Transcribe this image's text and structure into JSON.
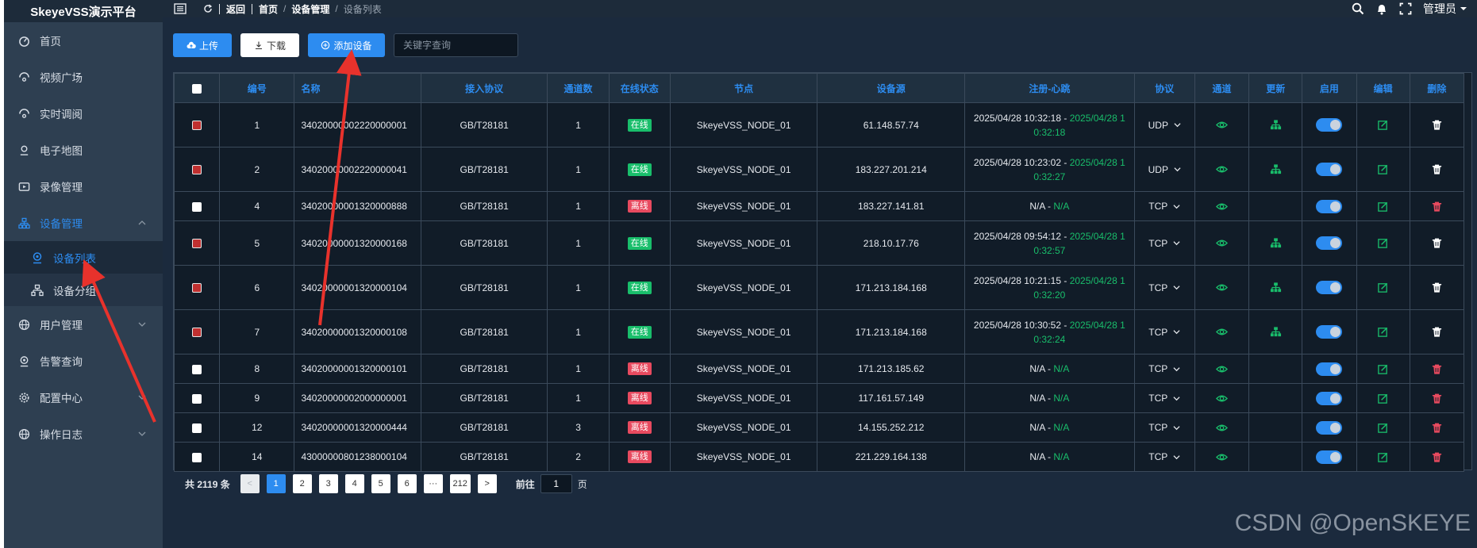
{
  "app": {
    "title": "SkeyeVSS演示平台"
  },
  "sidebar": {
    "items": [
      {
        "label": "首页"
      },
      {
        "label": "视频广场"
      },
      {
        "label": "实时调阅"
      },
      {
        "label": "电子地图"
      },
      {
        "label": "录像管理"
      },
      {
        "label": "设备管理"
      },
      {
        "label": "用户管理"
      },
      {
        "label": "告警查询"
      },
      {
        "label": "配置中心"
      },
      {
        "label": "操作日志"
      }
    ],
    "device_sub": [
      {
        "label": "设备列表"
      },
      {
        "label": "设备分组"
      }
    ]
  },
  "topbar": {
    "back": "返回",
    "crumbs": [
      "首页",
      "设备管理",
      "设备列表"
    ],
    "crumb_sep": "/",
    "user": "管理员"
  },
  "toolbar": {
    "upload": "上传",
    "download": "下载",
    "add": "添加设备",
    "search_placeholder": "关键字查询"
  },
  "table": {
    "headers": [
      "编号",
      "名称",
      "接入协议",
      "通道数",
      "在线状态",
      "节点",
      "设备源",
      "注册-心跳",
      "协议",
      "通道",
      "更新",
      "启用",
      "编辑",
      "删除"
    ],
    "rows": [
      {
        "id": "1",
        "name": "34020000002220000001",
        "access": "GB/T28181",
        "channels": "1",
        "status": "在线",
        "node": "SkeyeVSS_NODE_01",
        "source": "61.148.57.74",
        "reg": "2025/04/28 10:32:18",
        "hb": "2025/04/28 10:32:18",
        "hb_a": "2025/04/28 1",
        "hb_b": "0:32:18",
        "proto": "UDP"
      },
      {
        "id": "2",
        "name": "34020000002220000041",
        "access": "GB/T28181",
        "channels": "1",
        "status": "在线",
        "node": "SkeyeVSS_NODE_01",
        "source": "183.227.201.214",
        "reg": "2025/04/28 10:23:02",
        "hb_a": "2025/04/28 1",
        "hb_b": "0:32:27",
        "proto": "UDP"
      },
      {
        "id": "4",
        "name": "34020000001320000888",
        "access": "GB/T28181",
        "channels": "1",
        "status": "离线",
        "node": "SkeyeVSS_NODE_01",
        "source": "183.227.141.81",
        "reg": "N/A",
        "hb_a": "N/A",
        "hb_b": "",
        "proto": "TCP"
      },
      {
        "id": "5",
        "name": "34020000001320000168",
        "access": "GB/T28181",
        "channels": "1",
        "status": "在线",
        "node": "SkeyeVSS_NODE_01",
        "source": "218.10.17.76",
        "reg": "2025/04/28 09:54:12",
        "hb_a": "2025/04/28 1",
        "hb_b": "0:32:57",
        "proto": "TCP"
      },
      {
        "id": "6",
        "name": "34020000001320000104",
        "access": "GB/T28181",
        "channels": "1",
        "status": "在线",
        "node": "SkeyeVSS_NODE_01",
        "source": "171.213.184.168",
        "reg": "2025/04/28 10:21:15",
        "hb_a": "2025/04/28 1",
        "hb_b": "0:32:20",
        "proto": "TCP"
      },
      {
        "id": "7",
        "name": "34020000001320000108",
        "access": "GB/T28181",
        "channels": "1",
        "status": "在线",
        "node": "SkeyeVSS_NODE_01",
        "source": "171.213.184.168",
        "reg": "2025/04/28 10:30:52",
        "hb_a": "2025/04/28 1",
        "hb_b": "0:32:24",
        "proto": "TCP"
      },
      {
        "id": "8",
        "name": "34020000001320000101",
        "access": "GB/T28181",
        "channels": "1",
        "status": "离线",
        "node": "SkeyeVSS_NODE_01",
        "source": "171.213.185.62",
        "reg": "N/A",
        "hb_a": "N/A",
        "hb_b": "",
        "proto": "TCP"
      },
      {
        "id": "9",
        "name": "34020000002000000001",
        "access": "GB/T28181",
        "channels": "1",
        "status": "离线",
        "node": "SkeyeVSS_NODE_01",
        "source": "117.161.57.149",
        "reg": "N/A",
        "hb_a": "N/A",
        "hb_b": "",
        "proto": "TCP"
      },
      {
        "id": "12",
        "name": "34020000001320000444",
        "access": "GB/T28181",
        "channels": "3",
        "status": "离线",
        "node": "SkeyeVSS_NODE_01",
        "source": "14.155.252.212",
        "reg": "N/A",
        "hb_a": "N/A",
        "hb_b": "",
        "proto": "TCP"
      },
      {
        "id": "14",
        "name": "43000000801238000104",
        "access": "GB/T28181",
        "channels": "2",
        "status": "离线",
        "node": "SkeyeVSS_NODE_01",
        "source": "221.229.164.138",
        "reg": "N/A",
        "hb_a": "N/A",
        "hb_b": "",
        "proto": "TCP"
      }
    ],
    "row_state": {
      "tall": [
        true,
        true,
        false,
        true,
        true,
        true,
        false,
        false,
        false,
        false
      ],
      "checked": [
        true,
        true,
        false,
        true,
        true,
        true,
        false,
        false,
        false,
        false
      ],
      "update_icon": [
        true,
        true,
        false,
        true,
        true,
        true,
        false,
        false,
        false,
        false
      ],
      "delete_red": [
        false,
        false,
        true,
        false,
        false,
        false,
        true,
        true,
        true,
        true
      ]
    }
  },
  "pager": {
    "total": "共 2119 条",
    "prev": "<",
    "pages": [
      "1",
      "2",
      "3",
      "4",
      "5",
      "6",
      "···",
      "212"
    ],
    "next": ">",
    "goto": "前往",
    "goto_value": "1",
    "page_unit": "页"
  },
  "watermark": "CSDN @OpenSKEYE",
  "colors": {
    "accent": "#2d8cf0",
    "online": "#19be6b",
    "offline": "#e84a5f",
    "sidebar": "#2e3f51",
    "arrow": "#e8322c"
  },
  "icons": {
    "sidebar": [
      "dashboard-icon",
      "video-square-icon",
      "realtime-icon",
      "map-icon",
      "recording-icon",
      "device-icon",
      "globe-icon",
      "alarm-icon",
      "settings-icon",
      "log-icon"
    ],
    "row_actions": [
      "eye-icon",
      "sitemap-icon",
      "toggle-switch",
      "edit-icon",
      "trash-icon"
    ]
  }
}
